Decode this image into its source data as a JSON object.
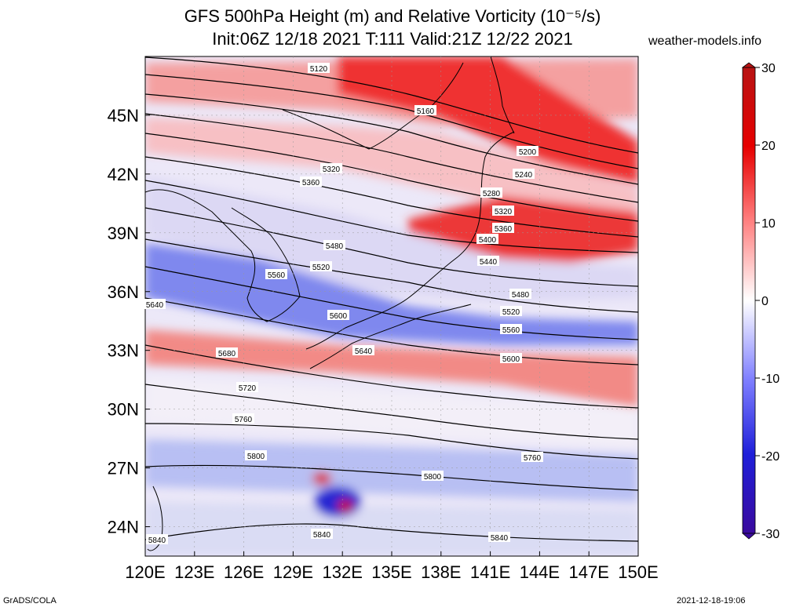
{
  "title": {
    "line1": "GFS 500hPa Height (m) and Relative Vorticity (10⁻⁵/s)",
    "line2": "Init:06Z 12/18 2021 T:111 Valid:21Z 12/22 2021"
  },
  "site": "weather-models.info",
  "footer": {
    "left": "GrADS/COLA",
    "right": "2021-12-18-19:06"
  },
  "map": {
    "lon_labels": [
      "120E",
      "123E",
      "126E",
      "129E",
      "132E",
      "135E",
      "138E",
      "141E",
      "144E",
      "147E",
      "150E"
    ],
    "lat_labels": [
      "45N",
      "42N",
      "39N",
      "36N",
      "33N",
      "30N",
      "27N",
      "24N"
    ],
    "lon_range": [
      120,
      150
    ],
    "lat_range": [
      22.5,
      48
    ],
    "contour_labels": [
      "5120",
      "5160",
      "5200",
      "5240",
      "5280",
      "5320",
      "5320",
      "5360",
      "5360",
      "5400",
      "5440",
      "5480",
      "5480",
      "5520",
      "5520",
      "5560",
      "5560",
      "5600",
      "5600",
      "5640",
      "5640",
      "5680",
      "5720",
      "5760",
      "5760",
      "5800",
      "5800",
      "5840",
      "5840",
      "5840"
    ]
  },
  "colorbar": {
    "ticks": [
      "30",
      "20",
      "10",
      "0",
      "-10",
      "-20",
      "-30"
    ],
    "range": [
      -30,
      30
    ],
    "colors": {
      "max": "#b81414",
      "strong_pos": "#e60000",
      "pos": "#ff8080",
      "zero": "#ffffff",
      "neg": "#7f7fff",
      "strong_neg": "#1f1fd9",
      "min": "#3a0a9e"
    }
  }
}
